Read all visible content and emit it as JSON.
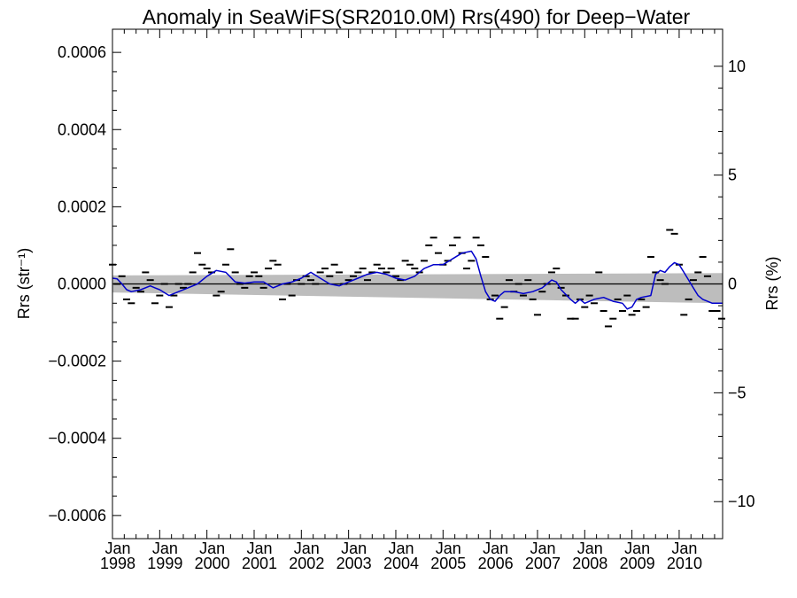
{
  "chart_data": {
    "type": "line",
    "title": "Anomaly in SeaWiFS(SR2010.0M) Rrs(490) for Deep−Water",
    "ylabel": "Rrs (str⁻¹)",
    "ylabel_right": "Rrs (%)",
    "xlabel": "",
    "xlim": [
      1998.0,
      2010.92
    ],
    "ylim": [
      -0.00066,
      0.00066
    ],
    "ylim_right": [
      -11.7,
      11.7
    ],
    "grid": false,
    "legend": "none",
    "x_tick_labels": [
      {
        "x": 1998,
        "month": "Jan",
        "year": "1998"
      },
      {
        "x": 1999,
        "month": "Jan",
        "year": "1999"
      },
      {
        "x": 2000,
        "month": "Jan",
        "year": "2000"
      },
      {
        "x": 2001,
        "month": "Jan",
        "year": "2001"
      },
      {
        "x": 2002,
        "month": "Jan",
        "year": "2002"
      },
      {
        "x": 2003,
        "month": "Jan",
        "year": "2003"
      },
      {
        "x": 2004,
        "month": "Jan",
        "year": "2004"
      },
      {
        "x": 2005,
        "month": "Jan",
        "year": "2005"
      },
      {
        "x": 2006,
        "month": "Jan",
        "year": "2006"
      },
      {
        "x": 2007,
        "month": "Jan",
        "year": "2007"
      },
      {
        "x": 2008,
        "month": "Jan",
        "year": "2008"
      },
      {
        "x": 2009,
        "month": "Jan",
        "year": "2009"
      },
      {
        "x": 2010,
        "month": "Jan",
        "year": "2010"
      }
    ],
    "y_tick_labels": [
      {
        "v": 0.0006,
        "label": "0.0006"
      },
      {
        "v": 0.0004,
        "label": "0.0004"
      },
      {
        "v": 0.0002,
        "label": "0.0002"
      },
      {
        "v": 0.0,
        "label": "0.0000"
      },
      {
        "v": -0.0002,
        "label": "−0.0002"
      },
      {
        "v": -0.0004,
        "label": "−0.0004"
      },
      {
        "v": -0.0006,
        "label": "−0.0006"
      }
    ],
    "y_right_tick_labels": [
      {
        "v": 10,
        "label": "10"
      },
      {
        "v": 5,
        "label": "5"
      },
      {
        "v": 0,
        "label": "0"
      },
      {
        "v": -5,
        "label": "−5"
      },
      {
        "v": -10,
        "label": "−10"
      }
    ],
    "confidence_band": {
      "x": [
        1998.0,
        2010.92
      ],
      "upper": [
        2.2e-05,
        2.8e-05
      ],
      "lower": [
        -2.2e-05,
        -5e-05
      ]
    },
    "zero_line": {
      "x": [
        1998.0,
        2010.92
      ],
      "y": [
        0,
        0
      ]
    },
    "monthly_anomalies": {
      "x": [
        1998.0,
        1998.1,
        1998.2,
        1998.3,
        1998.4,
        1998.5,
        1998.6,
        1998.7,
        1998.8,
        1998.9,
        1999.0,
        1999.1,
        1999.2,
        1999.3,
        1999.4,
        1999.5,
        1999.6,
        1999.7,
        1999.8,
        1999.9,
        2000.0,
        2000.1,
        2000.2,
        2000.3,
        2000.4,
        2000.5,
        2000.6,
        2000.7,
        2000.8,
        2000.9,
        2001.0,
        2001.1,
        2001.2,
        2001.3,
        2001.4,
        2001.5,
        2001.6,
        2001.7,
        2001.8,
        2001.9,
        2002.0,
        2002.1,
        2002.2,
        2002.3,
        2002.4,
        2002.5,
        2002.6,
        2002.7,
        2002.8,
        2002.9,
        2003.0,
        2003.1,
        2003.2,
        2003.3,
        2003.4,
        2003.5,
        2003.6,
        2003.7,
        2003.8,
        2003.9,
        2004.0,
        2004.1,
        2004.2,
        2004.3,
        2004.4,
        2004.5,
        2004.6,
        2004.7,
        2004.8,
        2004.9,
        2005.0,
        2005.1,
        2005.2,
        2005.3,
        2005.4,
        2005.5,
        2005.6,
        2005.7,
        2005.8,
        2005.9,
        2006.0,
        2006.1,
        2006.2,
        2006.3,
        2006.4,
        2006.5,
        2006.6,
        2006.7,
        2006.8,
        2006.9,
        2007.0,
        2007.1,
        2007.2,
        2007.3,
        2007.4,
        2007.5,
        2007.6,
        2007.7,
        2007.8,
        2007.9,
        2008.0,
        2008.1,
        2008.2,
        2008.3,
        2008.4,
        2008.5,
        2008.6,
        2008.7,
        2008.8,
        2008.9,
        2009.0,
        2009.1,
        2009.2,
        2009.3,
        2009.4,
        2009.5,
        2009.6,
        2009.7,
        2009.8,
        2009.9,
        2010.0,
        2010.1,
        2010.2,
        2010.3,
        2010.4,
        2010.5,
        2010.6,
        2010.7,
        2010.8,
        2010.9
      ],
      "y": [
        5e-05,
        0.0,
        2e-05,
        -4e-05,
        -5e-05,
        -1e-05,
        -2e-05,
        3e-05,
        1e-05,
        -5e-05,
        -3e-05,
        0.0,
        -6e-05,
        -3e-05,
        0.0,
        -1e-05,
        0.0,
        3e-05,
        8e-05,
        5e-05,
        4e-05,
        3e-05,
        -3e-05,
        -2e-05,
        5e-05,
        9e-05,
        3e-05,
        0.0,
        -1e-05,
        2e-05,
        3e-05,
        2e-05,
        -1e-05,
        4e-05,
        6e-05,
        5e-05,
        -4e-05,
        0.0,
        -3e-05,
        1e-05,
        0.0,
        2e-05,
        1e-05,
        0.0,
        3e-05,
        4e-05,
        2e-05,
        5e-05,
        3e-05,
        0.0,
        1e-05,
        2e-05,
        3e-05,
        4e-05,
        1e-05,
        3e-05,
        5e-05,
        4e-05,
        3e-05,
        4e-05,
        2e-05,
        1e-05,
        6e-05,
        5e-05,
        4e-05,
        3e-05,
        6e-05,
        0.0001,
        0.00012,
        8e-05,
        5e-05,
        6e-05,
        0.0001,
        0.00012,
        8e-05,
        4e-05,
        6e-05,
        0.00012,
        0.0001,
        7e-05,
        -4e-05,
        -3e-05,
        -9e-05,
        -6e-05,
        1e-05,
        -2e-05,
        0.0,
        -3e-05,
        1e-05,
        -4e-05,
        -8e-05,
        -2e-05,
        0.0,
        3e-05,
        4e-05,
        -1e-05,
        -3e-05,
        -9e-05,
        -9e-05,
        -4e-05,
        -6e-05,
        -3e-05,
        -5e-05,
        3e-05,
        -7e-05,
        -0.00011,
        -9e-05,
        -4e-05,
        -7e-05,
        -3e-05,
        -8e-05,
        -7e-05,
        -4e-05,
        -6e-05,
        7e-05,
        3e-05,
        1e-05,
        0.0,
        0.00014,
        0.00013,
        5e-05,
        -8e-05,
        -4e-05,
        1e-05,
        3e-05,
        7e-05,
        2e-05,
        -7e-05,
        -7e-05,
        -9e-05
      ],
      "color": "#000000"
    },
    "series": [
      {
        "type": "line",
        "color": "#0000cc",
        "x": [
          1998.0,
          1998.1,
          1998.2,
          1998.3,
          1998.4,
          1998.6,
          1998.8,
          1998.9,
          1999.0,
          1999.2,
          1999.4,
          1999.6,
          1999.8,
          2000.0,
          2000.2,
          2000.4,
          2000.6,
          2000.8,
          2001.0,
          2001.2,
          2001.4,
          2001.6,
          2001.8,
          2002.0,
          2002.2,
          2002.4,
          2002.6,
          2002.8,
          2003.0,
          2003.2,
          2003.4,
          2003.6,
          2003.8,
          2004.0,
          2004.2,
          2004.4,
          2004.6,
          2004.8,
          2005.0,
          2005.2,
          2005.4,
          2005.6,
          2005.7,
          2005.8,
          2005.9,
          2006.0,
          2006.1,
          2006.2,
          2006.3,
          2006.5,
          2006.7,
          2006.9,
          2007.1,
          2007.3,
          2007.4,
          2007.5,
          2007.7,
          2007.8,
          2007.9,
          2008.0,
          2008.2,
          2008.4,
          2008.6,
          2008.8,
          2008.9,
          2009.0,
          2009.1,
          2009.2,
          2009.4,
          2009.5,
          2009.6,
          2009.7,
          2009.8,
          2009.9,
          2010.0,
          2010.1,
          2010.2,
          2010.3,
          2010.4,
          2010.5,
          2010.6,
          2010.7,
          2010.8,
          2010.92
        ],
        "y": [
          1.5e-05,
          1.3e-05,
          0.0,
          -1.5e-05,
          -2e-05,
          -1.5e-05,
          -5e-06,
          -1e-05,
          -1.5e-05,
          -3e-05,
          -2e-05,
          -1e-05,
          0.0,
          2e-05,
          3.5e-05,
          3e-05,
          5e-06,
          2e-06,
          5e-06,
          5e-06,
          -1e-05,
          0.0,
          5e-06,
          1.5e-05,
          3e-05,
          1.5e-05,
          0.0,
          -5e-06,
          5e-06,
          1.5e-05,
          2.5e-05,
          3e-05,
          2.5e-05,
          1.5e-05,
          1e-05,
          2e-05,
          4e-05,
          5e-05,
          5e-05,
          6.5e-05,
          8e-05,
          8.5e-05,
          6.5e-05,
          2e-05,
          -2e-05,
          -4e-05,
          -4.5e-05,
          -3e-05,
          -2e-05,
          -2e-05,
          -2.5e-05,
          -2e-05,
          -1e-05,
          1e-05,
          5e-06,
          -1.5e-05,
          -4e-05,
          -5e-05,
          -4e-05,
          -5e-05,
          -4e-05,
          -3.5e-05,
          -4.5e-05,
          -5e-05,
          -6.5e-05,
          -6e-05,
          -4e-05,
          -3.5e-05,
          -3e-05,
          2.5e-05,
          3.5e-05,
          3e-05,
          4.5e-05,
          5.5e-05,
          5e-05,
          3e-05,
          1e-05,
          -1e-05,
          -3e-05,
          -4e-05,
          -4.5e-05,
          -5e-05,
          -5e-05,
          -5e-05
        ]
      }
    ]
  }
}
